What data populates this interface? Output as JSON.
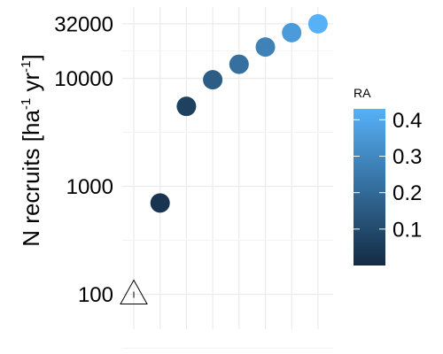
{
  "chart_data": {
    "type": "scatter",
    "title": "",
    "xlabel": "",
    "ylabel": {
      "base": "N recruits [ha",
      "sup1": "-1",
      "mid": " yr",
      "sup2": "-1",
      "end": "]"
    },
    "y_scale": "log10",
    "ylim": [
      40,
      40000
    ],
    "y_ticks": [
      {
        "value": 100,
        "label": "100"
      },
      {
        "value": 1000,
        "label": "1000"
      },
      {
        "value": 10000,
        "label": "10000"
      },
      {
        "value": 32000,
        "label": "32000"
      }
    ],
    "x_positions": 8,
    "x_tick_labels_visible": false,
    "grid": true,
    "points": [
      {
        "x": 1,
        "y": 100,
        "ra": 0.0,
        "marker": "warning-triangle"
      },
      {
        "x": 2,
        "y": 700,
        "ra": 0.03,
        "marker": "circle"
      },
      {
        "x": 3,
        "y": 5500,
        "ra": 0.07,
        "marker": "circle"
      },
      {
        "x": 4,
        "y": 9700,
        "ra": 0.16,
        "marker": "circle"
      },
      {
        "x": 5,
        "y": 13500,
        "ra": 0.22,
        "marker": "circle"
      },
      {
        "x": 6,
        "y": 19500,
        "ra": 0.28,
        "marker": "circle"
      },
      {
        "x": 7,
        "y": 26500,
        "ra": 0.36,
        "marker": "circle"
      },
      {
        "x": 8,
        "y": 32000,
        "ra": 0.43,
        "marker": "circle"
      }
    ],
    "legend": {
      "title": "RA",
      "position": "right",
      "type": "colorbar",
      "range": [
        0.0,
        0.43
      ],
      "low_color": "#132B43",
      "high_color": "#56B1F7",
      "ticks": [
        {
          "value": 0.1,
          "label": "0.1"
        },
        {
          "value": 0.2,
          "label": "0.2"
        },
        {
          "value": 0.3,
          "label": "0.3"
        },
        {
          "value": 0.4,
          "label": "0.4"
        }
      ]
    }
  }
}
